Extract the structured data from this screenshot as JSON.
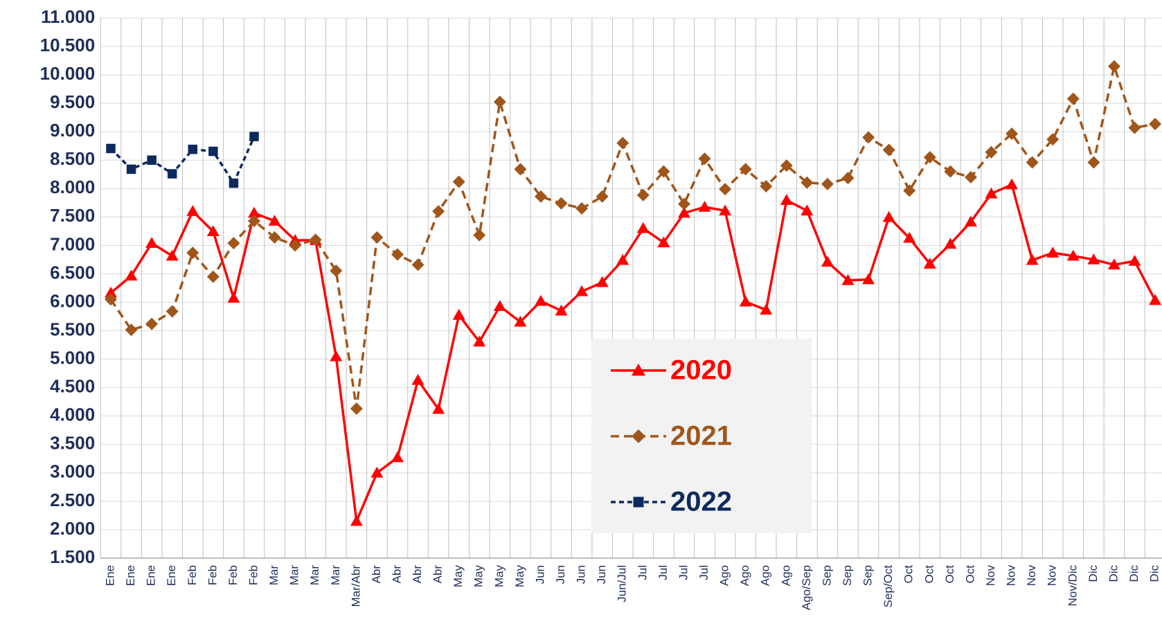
{
  "chart_data": {
    "type": "line",
    "categories": [
      "Ene",
      "Ene",
      "Ene",
      "Ene",
      "Feb",
      "Feb",
      "Feb",
      "Feb",
      "Mar",
      "Mar",
      "Mar",
      "Mar",
      "Mar/Abr",
      "Abr",
      "Abr",
      "Abr",
      "Abr",
      "May",
      "May",
      "May",
      "May",
      "Jun",
      "Jun",
      "Jun",
      "Jun",
      "Jun/Jul",
      "Jul",
      "Jul",
      "Jul",
      "Jul",
      "Ago",
      "Ago",
      "Ago",
      "Ago",
      "Ago/Sep",
      "Sep",
      "Sep",
      "Sep",
      "Sep/Oct",
      "Oct",
      "Oct",
      "Oct",
      "Oct",
      "Nov",
      "Nov",
      "Nov",
      "Nov",
      "Nov/Dic",
      "Dic",
      "Dic",
      "Dic",
      "Dic"
    ],
    "series": [
      {
        "name": "2020",
        "color": "#ff0000",
        "marker": "triangle",
        "dash": "solid",
        "values": [
          6165,
          6465,
          7040,
          6815,
          7600,
          7245,
          6075,
          7570,
          7430,
          7090,
          7090,
          5045,
          2150,
          3000,
          3270,
          4630,
          4120,
          5775,
          5305,
          5930,
          5655,
          6020,
          5850,
          6190,
          6350,
          6740,
          7300,
          7050,
          7570,
          7675,
          7610,
          6010,
          5865,
          7795,
          7610,
          6710,
          6385,
          6400,
          7495,
          7130,
          6675,
          7025,
          7415,
          7910,
          8070,
          6740,
          6870,
          6815,
          6750,
          6660,
          6725,
          6035
        ]
      },
      {
        "name": "2021",
        "color": "#a0561b",
        "marker": "diamond",
        "dash": "dashed",
        "values": [
          6050,
          5515,
          5620,
          5840,
          6870,
          6450,
          7040,
          7430,
          7140,
          7000,
          7100,
          6555,
          4130,
          7140,
          6840,
          6660,
          7600,
          8120,
          7180,
          9525,
          8340,
          7860,
          7740,
          7650,
          7860,
          8800,
          7885,
          8300,
          7730,
          8525,
          7990,
          8340,
          8040,
          8405,
          8105,
          8080,
          8185,
          8900,
          8680,
          7965,
          8550,
          8300,
          8200,
          8640,
          8965,
          8460,
          8865,
          9580,
          8460,
          10150,
          9070,
          9135
        ]
      },
      {
        "name": "2022",
        "color": "#0d2a5e",
        "marker": "square",
        "dash": "dashed",
        "values": [
          8705,
          8340,
          8500,
          8260,
          8690,
          8655,
          8095,
          8915,
          null,
          null,
          null,
          null,
          null,
          null,
          null,
          null,
          null,
          null,
          null,
          null,
          null,
          null,
          null,
          null,
          null,
          null,
          null,
          null,
          null,
          null,
          null,
          null,
          null,
          null,
          null,
          null,
          null,
          null,
          null,
          null,
          null,
          null,
          null,
          null,
          null,
          null,
          null,
          null,
          null,
          null,
          null,
          null
        ]
      }
    ],
    "ylim": [
      1500,
      11000
    ],
    "yticks": [
      {
        "value": 1500,
        "label": "1.500"
      },
      {
        "value": 2000,
        "label": "2.000"
      },
      {
        "value": 2500,
        "label": "2.500"
      },
      {
        "value": 3000,
        "label": "3.000"
      },
      {
        "value": 3500,
        "label": "3.500"
      },
      {
        "value": 4000,
        "label": "4.000"
      },
      {
        "value": 4500,
        "label": "4.500"
      },
      {
        "value": 5000,
        "label": "5.000"
      },
      {
        "value": 5500,
        "label": "5.500"
      },
      {
        "value": 6000,
        "label": "6.000"
      },
      {
        "value": 6500,
        "label": "6.500"
      },
      {
        "value": 7000,
        "label": "7.000"
      },
      {
        "value": 7500,
        "label": "7.500"
      },
      {
        "value": 8000,
        "label": "8.000"
      },
      {
        "value": 8500,
        "label": "8.500"
      },
      {
        "value": 9000,
        "label": "9.000"
      },
      {
        "value": 9500,
        "label": "9.500"
      },
      {
        "value": 10000,
        "label": "10.000"
      },
      {
        "value": 10500,
        "label": "10.500"
      },
      {
        "value": 11000,
        "label": "11.000"
      }
    ],
    "grid": true,
    "legend": "center"
  }
}
